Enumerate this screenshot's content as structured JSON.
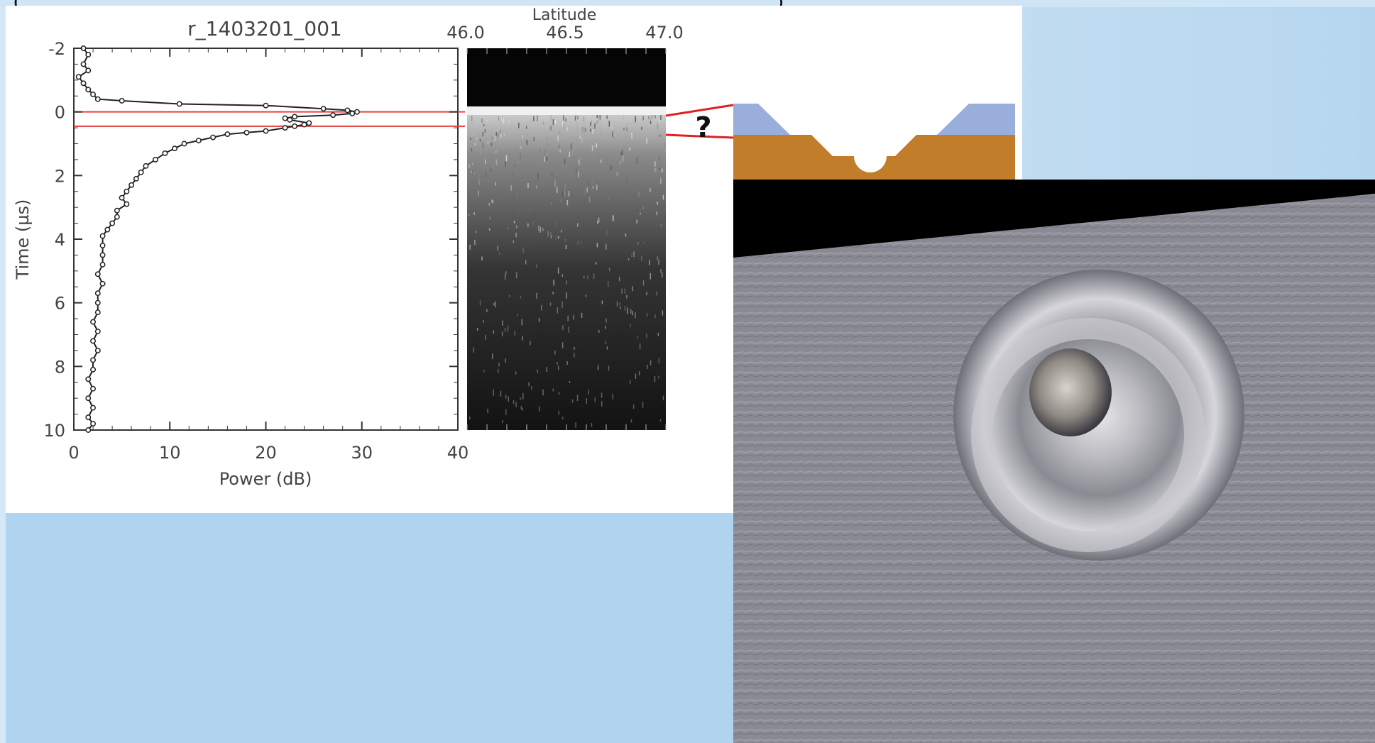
{
  "figure": {
    "top_left_paren": "(",
    "top_right_paren": ")",
    "profile_label": "r_1403201_001",
    "question_mark": "?"
  },
  "chart_data": {
    "type": "line",
    "title": "r_1403201_001",
    "xlabel": "Power (dB)",
    "ylabel": "Time (µs)",
    "xlim": [
      0,
      40
    ],
    "ylim": [
      10,
      -2
    ],
    "x_ticks": [
      "0",
      "10",
      "20",
      "30",
      "40"
    ],
    "y_ticks": [
      "-2",
      "0",
      "2",
      "4",
      "6",
      "8",
      "10"
    ],
    "x_tick_values": [
      0,
      10,
      20,
      30,
      40
    ],
    "y_tick_values": [
      -2,
      0,
      2,
      4,
      6,
      8,
      10
    ],
    "horizontal_lines": [
      0,
      0.45
    ],
    "horizontal_line_color": "#e84040",
    "series": [
      {
        "color": "#222222",
        "points": [
          [
            1.0,
            -2.0
          ],
          [
            1.5,
            -1.8
          ],
          [
            1.0,
            -1.5
          ],
          [
            1.5,
            -1.3
          ],
          [
            0.5,
            -1.1
          ],
          [
            1.0,
            -0.9
          ],
          [
            1.5,
            -0.7
          ],
          [
            2.0,
            -0.55
          ],
          [
            2.5,
            -0.4
          ],
          [
            5.0,
            -0.35
          ],
          [
            11.0,
            -0.25
          ],
          [
            20.0,
            -0.2
          ],
          [
            26.0,
            -0.1
          ],
          [
            28.5,
            -0.05
          ],
          [
            29.5,
            0.0
          ],
          [
            29.0,
            0.05
          ],
          [
            27.0,
            0.1
          ],
          [
            23.0,
            0.15
          ],
          [
            22.0,
            0.2
          ],
          [
            22.5,
            0.25
          ],
          [
            24.5,
            0.35
          ],
          [
            24.0,
            0.4
          ],
          [
            23.0,
            0.45
          ],
          [
            22.0,
            0.5
          ],
          [
            20.0,
            0.6
          ],
          [
            18.0,
            0.65
          ],
          [
            16.0,
            0.7
          ],
          [
            14.5,
            0.8
          ],
          [
            13.0,
            0.9
          ],
          [
            11.5,
            1.0
          ],
          [
            10.5,
            1.15
          ],
          [
            9.5,
            1.3
          ],
          [
            8.5,
            1.5
          ],
          [
            7.5,
            1.7
          ],
          [
            7.0,
            1.9
          ],
          [
            6.5,
            2.1
          ],
          [
            6.0,
            2.3
          ],
          [
            5.5,
            2.5
          ],
          [
            5.0,
            2.7
          ],
          [
            5.5,
            2.9
          ],
          [
            4.5,
            3.1
          ],
          [
            4.5,
            3.3
          ],
          [
            4.0,
            3.5
          ],
          [
            3.5,
            3.7
          ],
          [
            3.0,
            3.9
          ],
          [
            3.0,
            4.2
          ],
          [
            3.0,
            4.5
          ],
          [
            3.0,
            4.8
          ],
          [
            2.5,
            5.1
          ],
          [
            3.0,
            5.4
          ],
          [
            2.5,
            5.7
          ],
          [
            2.5,
            6.0
          ],
          [
            2.5,
            6.3
          ],
          [
            2.0,
            6.6
          ],
          [
            2.5,
            6.9
          ],
          [
            2.0,
            7.2
          ],
          [
            2.5,
            7.5
          ],
          [
            2.0,
            7.8
          ],
          [
            2.0,
            8.1
          ],
          [
            1.5,
            8.4
          ],
          [
            2.0,
            8.7
          ],
          [
            1.5,
            9.0
          ],
          [
            2.0,
            9.3
          ],
          [
            1.5,
            9.6
          ],
          [
            2.0,
            9.8
          ],
          [
            1.5,
            10.0
          ]
        ]
      }
    ]
  },
  "radargram": {
    "axis_label": "Latitude",
    "x_ticks": [
      "46.0",
      "46.5",
      "47.0"
    ],
    "x_tick_values": [
      46.0,
      46.5,
      47.0
    ]
  },
  "colors": {
    "background_light": "#d6e8f6",
    "background_panel": "#b0d4ef",
    "schematic_ice": "#9aaedc",
    "schematic_ground": "#c27d2b",
    "marker_line": "#e02020"
  }
}
